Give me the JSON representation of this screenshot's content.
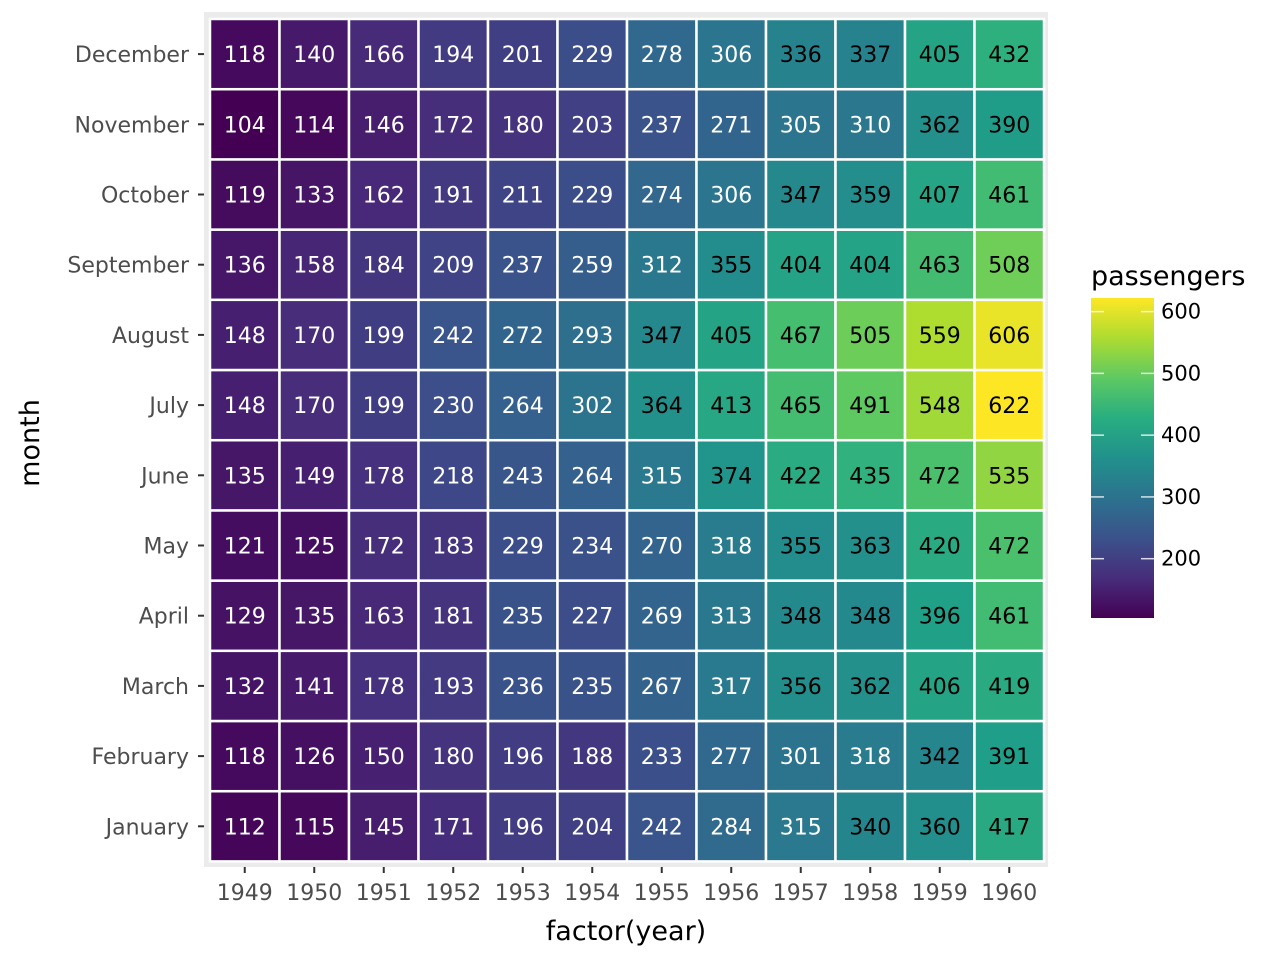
{
  "chart_data": {
    "type": "heatmap",
    "xlabel": "factor(year)",
    "ylabel": "month",
    "x": [
      "1949",
      "1950",
      "1951",
      "1952",
      "1953",
      "1954",
      "1955",
      "1956",
      "1957",
      "1958",
      "1959",
      "1960"
    ],
    "y": [
      "January",
      "February",
      "March",
      "April",
      "May",
      "June",
      "July",
      "August",
      "September",
      "October",
      "November",
      "December"
    ],
    "values": [
      [
        112,
        115,
        145,
        171,
        196,
        204,
        242,
        284,
        315,
        340,
        360,
        417
      ],
      [
        118,
        126,
        150,
        180,
        196,
        188,
        233,
        277,
        301,
        318,
        342,
        391
      ],
      [
        132,
        141,
        178,
        193,
        236,
        235,
        267,
        317,
        356,
        362,
        406,
        419
      ],
      [
        129,
        135,
        163,
        181,
        235,
        227,
        269,
        313,
        348,
        348,
        396,
        461
      ],
      [
        121,
        125,
        172,
        183,
        229,
        234,
        270,
        318,
        355,
        363,
        420,
        472
      ],
      [
        135,
        149,
        178,
        218,
        243,
        264,
        315,
        374,
        422,
        435,
        472,
        535
      ],
      [
        148,
        170,
        199,
        230,
        264,
        302,
        364,
        413,
        465,
        491,
        548,
        622
      ],
      [
        148,
        170,
        199,
        242,
        272,
        293,
        347,
        405,
        467,
        505,
        559,
        606
      ],
      [
        136,
        158,
        184,
        209,
        237,
        259,
        312,
        355,
        404,
        404,
        463,
        508
      ],
      [
        119,
        133,
        162,
        191,
        211,
        229,
        274,
        306,
        347,
        359,
        407,
        461
      ],
      [
        104,
        114,
        146,
        172,
        180,
        203,
        237,
        271,
        305,
        310,
        362,
        390
      ],
      [
        118,
        140,
        166,
        194,
        201,
        229,
        278,
        306,
        336,
        337,
        405,
        432
      ]
    ],
    "legend": {
      "title": "passengers",
      "ticks": [
        200,
        300,
        400,
        500,
        600
      ],
      "range": [
        104,
        622
      ],
      "colormap": "viridis"
    },
    "label_text_colors": {
      "dark": "#000000",
      "light": "#ffffff"
    },
    "panel_background": "#ebebeb"
  }
}
